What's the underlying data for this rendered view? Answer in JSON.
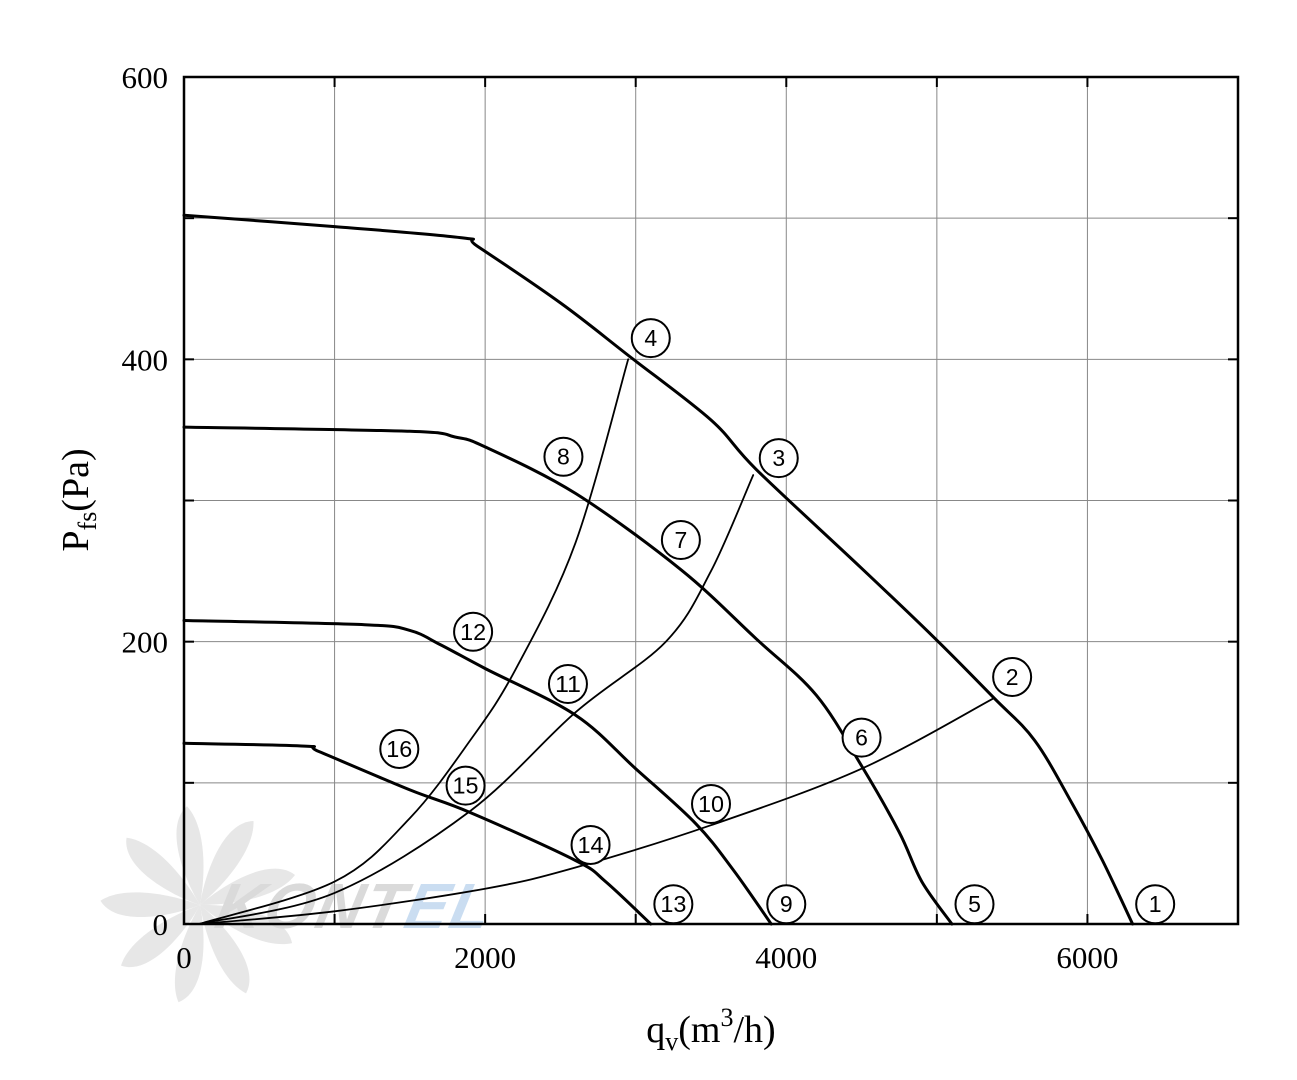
{
  "chart_data": {
    "type": "line",
    "title": "",
    "xlabel": {
      "main": "q",
      "sub": "v",
      "unit_prefix": "(m",
      "sup": "3",
      "unit_suffix": "/h)"
    },
    "ylabel": {
      "main": "P",
      "sub": "fs",
      "unit": "(Pa)"
    },
    "xlim": [
      0,
      7000
    ],
    "ylim": [
      0,
      600
    ],
    "grid": true,
    "x_grid_step": 1000,
    "y_grid_step": 100,
    "x_ticks": [
      0,
      2000,
      4000,
      6000
    ],
    "y_ticks": [
      0,
      200,
      400,
      600
    ],
    "x_tick_labels": [
      "0",
      "2000",
      "4000",
      "6000"
    ],
    "y_tick_labels": [
      "0",
      "200",
      "400",
      "600"
    ],
    "series": [
      {
        "kind": "fan_curve",
        "line_width": "thick",
        "points": [
          [
            0,
            502
          ],
          [
            1000,
            494
          ],
          [
            1850,
            486
          ],
          [
            1950,
            480
          ],
          [
            2500,
            440
          ],
          [
            2960,
            402
          ],
          [
            3500,
            357
          ],
          [
            3800,
            322
          ],
          [
            4500,
            252
          ],
          [
            5000,
            201
          ],
          [
            5380,
            160
          ],
          [
            5650,
            130
          ],
          [
            5900,
            85
          ],
          [
            6100,
            45
          ],
          [
            6300,
            0
          ]
        ]
      },
      {
        "kind": "fan_curve",
        "line_width": "thick",
        "points": [
          [
            0,
            352
          ],
          [
            1500,
            349
          ],
          [
            1800,
            345
          ],
          [
            2000,
            338
          ],
          [
            2600,
            305
          ],
          [
            3300,
            251
          ],
          [
            3800,
            202
          ],
          [
            4200,
            162
          ],
          [
            4500,
            112
          ],
          [
            4750,
            65
          ],
          [
            4900,
            30
          ],
          [
            5100,
            0
          ]
        ]
      },
      {
        "kind": "fan_curve",
        "line_width": "thick",
        "points": [
          [
            0,
            215
          ],
          [
            1200,
            212
          ],
          [
            1500,
            208
          ],
          [
            1700,
            198
          ],
          [
            2000,
            181
          ],
          [
            2600,
            148
          ],
          [
            3000,
            110
          ],
          [
            3400,
            71
          ],
          [
            3650,
            38
          ],
          [
            3900,
            0
          ]
        ]
      },
      {
        "kind": "fan_curve",
        "line_width": "thick",
        "points": [
          [
            0,
            128
          ],
          [
            800,
            126
          ],
          [
            900,
            122
          ],
          [
            1500,
            95
          ],
          [
            1900,
            79
          ],
          [
            2600,
            45
          ],
          [
            2800,
            30
          ],
          [
            3100,
            0
          ]
        ]
      },
      {
        "kind": "system_curve",
        "line_width": "thin",
        "points": [
          [
            100,
            0
          ],
          [
            1000,
            30
          ],
          [
            1500,
            75
          ],
          [
            1900,
            130
          ],
          [
            2200,
            180
          ],
          [
            2600,
            270
          ],
          [
            2950,
            400
          ]
        ]
      },
      {
        "kind": "system_curve",
        "line_width": "thin",
        "points": [
          [
            100,
            0
          ],
          [
            1000,
            22
          ],
          [
            1900,
            80
          ],
          [
            2600,
            150
          ],
          [
            3200,
            200
          ],
          [
            3500,
            250
          ],
          [
            3780,
            318
          ]
        ]
      },
      {
        "kind": "system_curve",
        "line_width": "thin",
        "points": [
          [
            100,
            0
          ],
          [
            1000,
            9
          ],
          [
            2000,
            25
          ],
          [
            2600,
            40
          ],
          [
            3500,
            70
          ],
          [
            4500,
            110
          ],
          [
            5380,
            160
          ]
        ]
      }
    ],
    "markers": [
      {
        "label": "1",
        "x": 6450,
        "y": 14
      },
      {
        "label": "2",
        "x": 5500,
        "y": 175
      },
      {
        "label": "3",
        "x": 3950,
        "y": 330
      },
      {
        "label": "4",
        "x": 3100,
        "y": 415
      },
      {
        "label": "5",
        "x": 5250,
        "y": 14
      },
      {
        "label": "6",
        "x": 4500,
        "y": 132
      },
      {
        "label": "7",
        "x": 3300,
        "y": 272
      },
      {
        "label": "8",
        "x": 2520,
        "y": 331
      },
      {
        "label": "9",
        "x": 4000,
        "y": 14
      },
      {
        "label": "10",
        "x": 3500,
        "y": 85
      },
      {
        "label": "11",
        "x": 2550,
        "y": 170
      },
      {
        "label": "12",
        "x": 1920,
        "y": 207
      },
      {
        "label": "13",
        "x": 3250,
        "y": 14
      },
      {
        "label": "14",
        "x": 2700,
        "y": 56
      },
      {
        "label": "15",
        "x": 1870,
        "y": 98
      },
      {
        "label": "16",
        "x": 1430,
        "y": 124
      }
    ]
  },
  "watermark": {
    "text": "KONTEL",
    "colors": {
      "dark": "#bcbcbc",
      "accent": "#9fc3e6"
    }
  },
  "colors": {
    "line": "#000000",
    "grid": "#888888",
    "background": "#ffffff"
  }
}
